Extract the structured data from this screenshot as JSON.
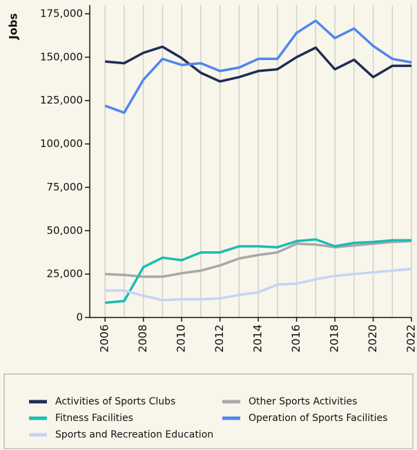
{
  "chart_data": {
    "type": "line",
    "y_label": "Jobs",
    "x": [
      2006,
      2007,
      2008,
      2009,
      2010,
      2011,
      2012,
      2013,
      2014,
      2015,
      2016,
      2017,
      2018,
      2019,
      2020,
      2021,
      2022
    ],
    "xlim": [
      2005.2,
      2022
    ],
    "xticks": [
      2006,
      2008,
      2010,
      2012,
      2014,
      2016,
      2018,
      2020,
      2022
    ],
    "ylim": [
      0,
      180000
    ],
    "yticks": [
      0,
      {
        "value": 25000,
        "label": "25,000"
      },
      {
        "value": 50000,
        "label": "50,000"
      },
      {
        "value": 75000,
        "label": "75,000"
      },
      {
        "value": 100000,
        "label": "100,000"
      },
      {
        "value": 125000,
        "label": "125,000"
      },
      {
        "value": 150000,
        "label": "150,000"
      },
      {
        "value": 175000,
        "label": "175,000"
      }
    ],
    "grid": true,
    "series": [
      {
        "name": "Activities of Sports Clubs",
        "color": "#1f2d54",
        "values": [
          147500,
          146500,
          152500,
          156000,
          149500,
          141000,
          136000,
          138500,
          142000,
          143000,
          150000,
          155500,
          143000,
          148500,
          138500,
          145000,
          145000
        ]
      },
      {
        "name": "Other Sports Activities",
        "color": "#a8a8a8",
        "values": [
          25000,
          24500,
          23500,
          23500,
          25500,
          27000,
          30000,
          34000,
          36000,
          37500,
          42500,
          42000,
          40500,
          41500,
          42500,
          43500,
          44000
        ]
      },
      {
        "name": "Fitness Facilities",
        "color": "#1bbcb4",
        "values": [
          8500,
          9500,
          29000,
          34500,
          33000,
          37500,
          37500,
          41000,
          41000,
          40500,
          44000,
          45000,
          41000,
          43000,
          43500,
          44500,
          44500
        ]
      },
      {
        "name": "Operation of Sports Facilities",
        "color": "#4f86f0",
        "values": [
          122000,
          118000,
          137000,
          149000,
          145500,
          146500,
          142000,
          144000,
          149000,
          149000,
          164000,
          171000,
          161000,
          166500,
          156500,
          149000,
          147000
        ]
      },
      {
        "name": "Sports and Recreation Education",
        "color": "#c5d3f7",
        "values": [
          15500,
          15500,
          12500,
          10000,
          10500,
          10500,
          11000,
          13000,
          14500,
          19000,
          19500,
          22000,
          24000,
          25000,
          26000,
          27000,
          28000
        ]
      }
    ]
  }
}
